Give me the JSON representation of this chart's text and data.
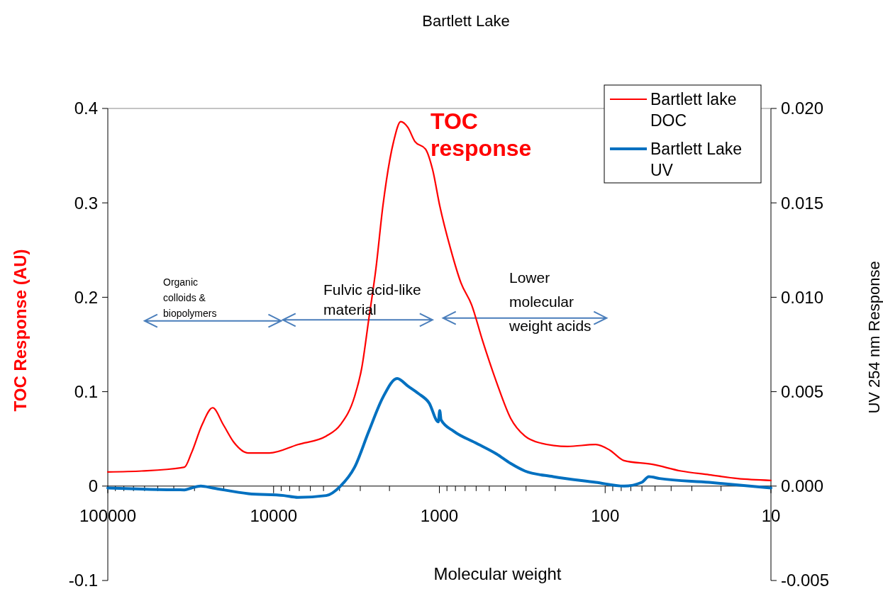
{
  "chart_data": {
    "type": "line",
    "title": "Bartlett Lake",
    "xlabel": "Molecular weight",
    "ylabel": "TOC Response (AU)",
    "y2label": "UV 254 nm Response",
    "log": "x",
    "xlim": [
      100000,
      10
    ],
    "xticks": [
      100000,
      10000,
      1000,
      100,
      10
    ],
    "ylim": [
      -0.1,
      0.4
    ],
    "yticks": [
      -0.1,
      {
        "value": 0,
        "label": "0"
      },
      0.1,
      0.2,
      0.3,
      0.4
    ],
    "y2lim": [
      -0.005,
      0.02
    ],
    "y2ticks": [
      -0.005,
      {
        "value": 0,
        "label": "0.000"
      },
      0.005,
      {
        "value": 0.01,
        "label": "0.010"
      },
      0.015,
      {
        "value": 0.02,
        "label": "0.020"
      }
    ],
    "legend": "top right",
    "grid": false,
    "marker": "none",
    "line_style": "solid",
    "annotations": [
      "TOC response",
      "Organic colloids & biopolymers",
      "Fulvic acid-like material",
      "Lower molecular weight acids"
    ],
    "series": [
      {
        "name": "Bartlett lake DOC",
        "color": "#ff0000",
        "x": [
          100000,
          62400,
          34500,
          31300,
          27000,
          23300,
          20100,
          17300,
          14200,
          10600,
          7140,
          4810,
          3950,
          3245,
          2940,
          2665,
          2415,
          2190,
          1888,
          1711,
          1550,
          1405,
          1212,
          1098,
          995,
          858,
          740,
          639,
          551,
          452,
          372,
          305,
          251,
          169,
          114,
          93.6,
          76.9,
          51.8,
          34.9,
          23.6,
          15.9,
          10
        ],
        "values": [
          0.015,
          0.016,
          0.02,
          0.035,
          0.065,
          0.083,
          0.065,
          0.046,
          0.035,
          0.035,
          0.044,
          0.053,
          0.065,
          0.095,
          0.125,
          0.177,
          0.23,
          0.297,
          0.365,
          0.386,
          0.38,
          0.365,
          0.357,
          0.335,
          0.297,
          0.252,
          0.215,
          0.192,
          0.155,
          0.11,
          0.072,
          0.053,
          0.046,
          0.042,
          0.044,
          0.038,
          0.027,
          0.023,
          0.016,
          0.012,
          0.008,
          0.006
        ]
      },
      {
        "name": "Bartlett Lake UV",
        "color": "#0070c0",
        "axis": "y2",
        "x": [
          100000,
          34500,
          31300,
          27500,
          23300,
          14200,
          8690,
          7140,
          4810,
          3950,
          3245,
          2665,
          2190,
          1797,
          1550,
          1337,
          1153,
          1015,
          995,
          976,
          817,
          608,
          452,
          372,
          305,
          206,
          114,
          76.9,
          60.1,
          54.5,
          46.9,
          23.6,
          10
        ],
        "values": [
          -0.0001,
          -0.0002,
          -0.0001,
          0,
          -0.0001,
          -0.0004,
          -0.0005,
          -0.0006,
          -0.0005,
          0,
          0.001,
          0.0029,
          0.0047,
          0.0057,
          0.0053,
          0.0049,
          0.0044,
          0.0034,
          0.004,
          0.0035,
          0.0029,
          0.0023,
          0.0017,
          0.0012,
          0.0008,
          0.0005,
          0.0002,
          0,
          0.0002,
          0.0005,
          0.0004,
          0.0002,
          -0.0001
        ]
      }
    ]
  }
}
